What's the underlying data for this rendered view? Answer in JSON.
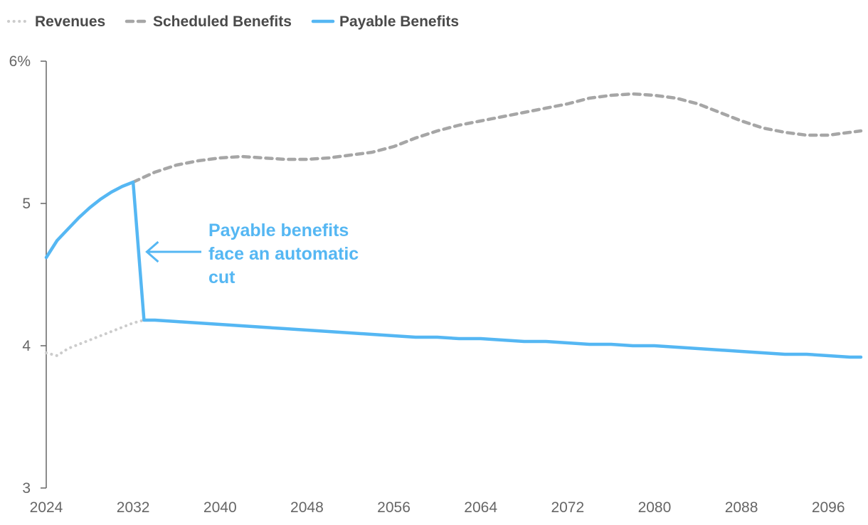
{
  "chart_data": {
    "type": "line",
    "title": "",
    "xlabel": "",
    "ylabel": "",
    "xlim": [
      2024,
      2099
    ],
    "ylim": [
      3,
      6
    ],
    "x_ticks": [
      2024,
      2032,
      2040,
      2048,
      2056,
      2064,
      2072,
      2080,
      2088,
      2096
    ],
    "x_tick_labels": [
      "2024",
      "2032",
      "2040",
      "2048",
      "2056",
      "2064",
      "2072",
      "2080",
      "2088",
      "2096"
    ],
    "y_ticks": [
      3,
      4,
      5,
      6
    ],
    "y_tick_labels": [
      "3",
      "4",
      "5",
      "6%"
    ],
    "grid": false,
    "legend_position": "top-left",
    "series": [
      {
        "name": "Revenues",
        "style": "dotted",
        "color": "#cccccc",
        "x": [
          2024,
          2025,
          2026,
          2027,
          2028,
          2029,
          2030,
          2031,
          2032,
          2033
        ],
        "values": [
          3.95,
          3.93,
          3.98,
          4.01,
          4.04,
          4.07,
          4.1,
          4.13,
          4.16,
          4.18
        ]
      },
      {
        "name": "Scheduled Benefits",
        "style": "dashed",
        "color": "#a6a6a6",
        "x": [
          2032,
          2034,
          2036,
          2038,
          2040,
          2042,
          2044,
          2046,
          2048,
          2050,
          2052,
          2054,
          2056,
          2058,
          2060,
          2062,
          2064,
          2066,
          2068,
          2070,
          2072,
          2074,
          2076,
          2078,
          2080,
          2082,
          2084,
          2086,
          2088,
          2090,
          2092,
          2094,
          2096,
          2098,
          2099
        ],
        "values": [
          5.15,
          5.22,
          5.27,
          5.3,
          5.32,
          5.33,
          5.32,
          5.31,
          5.31,
          5.32,
          5.34,
          5.36,
          5.4,
          5.46,
          5.51,
          5.55,
          5.58,
          5.61,
          5.64,
          5.67,
          5.7,
          5.74,
          5.76,
          5.77,
          5.76,
          5.74,
          5.7,
          5.64,
          5.58,
          5.53,
          5.5,
          5.48,
          5.48,
          5.5,
          5.51
        ]
      },
      {
        "name": "Payable Benefits",
        "style": "solid",
        "color": "#55b7f3",
        "x": [
          2024,
          2025,
          2026,
          2027,
          2028,
          2029,
          2030,
          2031,
          2032,
          2033,
          2034,
          2036,
          2038,
          2040,
          2042,
          2044,
          2046,
          2048,
          2050,
          2052,
          2054,
          2056,
          2058,
          2060,
          2062,
          2064,
          2066,
          2068,
          2070,
          2072,
          2074,
          2076,
          2078,
          2080,
          2082,
          2084,
          2086,
          2088,
          2090,
          2092,
          2094,
          2096,
          2098,
          2099
        ],
        "values": [
          4.62,
          4.74,
          4.82,
          4.9,
          4.97,
          5.03,
          5.08,
          5.12,
          5.15,
          4.18,
          4.18,
          4.17,
          4.16,
          4.15,
          4.14,
          4.13,
          4.12,
          4.11,
          4.1,
          4.09,
          4.08,
          4.07,
          4.06,
          4.06,
          4.05,
          4.05,
          4.04,
          4.03,
          4.03,
          4.02,
          4.01,
          4.01,
          4.0,
          4.0,
          3.99,
          3.98,
          3.97,
          3.96,
          3.95,
          3.94,
          3.94,
          3.93,
          3.92,
          3.92
        ]
      }
    ],
    "annotations": [
      {
        "lines": [
          "Payable benefits",
          "face an automatic",
          "cut"
        ],
        "color": "#55b7f3",
        "points_to": {
          "x": 2033,
          "y": 4.66
        }
      }
    ]
  }
}
